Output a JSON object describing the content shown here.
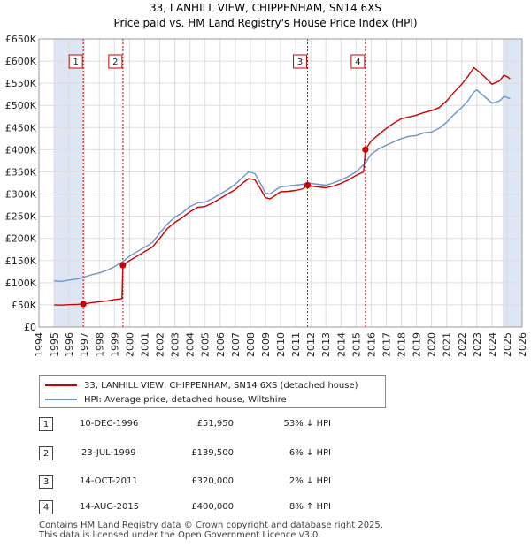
{
  "header": {
    "title": "33, LANHILL VIEW, CHIPPENHAM, SN14 6XS",
    "subtitle": "Price paid vs. HM Land Registry's House Price Index (HPI)"
  },
  "legend": {
    "property_label": "33, LANHILL VIEW, CHIPPENHAM, SN14 6XS (detached house)",
    "hpi_label": "HPI: Average price, detached house, Wiltshire"
  },
  "colors": {
    "property": "#cc0000",
    "hpi": "#6b96c8",
    "shade": "#dde6f2",
    "grid": "#dddddd",
    "marker_line": "#cc0000"
  },
  "sales": [
    {
      "num": "1",
      "date": "10-DEC-1996",
      "price": "£51,950",
      "hpi_delta": "53% ↓ HPI"
    },
    {
      "num": "2",
      "date": "23-JUL-1999",
      "price": "£139,500",
      "hpi_delta": "6% ↓ HPI"
    },
    {
      "num": "3",
      "date": "14-OCT-2011",
      "price": "£320,000",
      "hpi_delta": "2% ↓ HPI"
    },
    {
      "num": "4",
      "date": "14-AUG-2015",
      "price": "£400,000",
      "hpi_delta": "8% ↑ HPI"
    }
  ],
  "footer": {
    "line1": "Contains HM Land Registry data © Crown copyright and database right 2025.",
    "line2": "This data is licensed under the Open Government Licence v3.0."
  },
  "chart_data": {
    "type": "line",
    "title": "33, LANHILL VIEW, CHIPPENHAM, SN14 6XS",
    "subtitle": "Price paid vs. HM Land Registry's House Price Index (HPI)",
    "xlim": [
      1994,
      2026
    ],
    "ylim": [
      0,
      650000
    ],
    "x_ticks": [
      1994,
      1995,
      1996,
      1997,
      1998,
      1999,
      2000,
      2001,
      2002,
      2003,
      2004,
      2005,
      2006,
      2007,
      2008,
      2009,
      2010,
      2011,
      2012,
      2013,
      2014,
      2015,
      2016,
      2017,
      2018,
      2019,
      2020,
      2021,
      2022,
      2023,
      2024,
      2025,
      2026
    ],
    "x_tick_labels": [
      "1994",
      "1995",
      "1996",
      "1997",
      "1998",
      "1999",
      "2000",
      "2001",
      "2002",
      "2003",
      "2004",
      "2005",
      "2006",
      "2007",
      "2008",
      "2009",
      "2010",
      "2011",
      "2012",
      "2013",
      "2014",
      "2015",
      "2016",
      "2017",
      "2018",
      "2019",
      "2020",
      "2021",
      "2022",
      "2023",
      "2024",
      "2025",
      "2026"
    ],
    "y_ticks": [
      0,
      50000,
      100000,
      150000,
      200000,
      250000,
      300000,
      350000,
      400000,
      450000,
      500000,
      550000,
      600000,
      650000
    ],
    "y_tick_labels": [
      "£0",
      "£50K",
      "£100K",
      "£150K",
      "£200K",
      "£250K",
      "£300K",
      "£350K",
      "£400K",
      "£450K",
      "£500K",
      "£550K",
      "£600K",
      "£650K"
    ],
    "shaded_ranges": [
      [
        1995.0,
        1996.94
      ],
      [
        2024.7,
        2026
      ]
    ],
    "transactions": [
      {
        "label": "1",
        "x": 1996.94,
        "y": 51950
      },
      {
        "label": "2",
        "x": 1999.56,
        "y": 139500
      },
      {
        "label": "3",
        "x": 2011.79,
        "y": 320000
      },
      {
        "label": "4",
        "x": 2015.62,
        "y": 400000
      }
    ],
    "series": [
      {
        "name": "HPI: Average price, detached house, Wiltshire",
        "color": "#6b96c8",
        "x": [
          1995.0,
          1995.5,
          1996.0,
          1996.5,
          1996.94,
          1997.5,
          1998.0,
          1998.5,
          1999.0,
          1999.56,
          2000.0,
          2000.5,
          2001.0,
          2001.5,
          2002.0,
          2002.5,
          2003.0,
          2003.5,
          2004.0,
          2004.5,
          2005.0,
          2005.5,
          2006.0,
          2006.5,
          2007.0,
          2007.5,
          2007.9,
          2008.3,
          2008.7,
          2009.0,
          2009.3,
          2009.7,
          2010.0,
          2010.5,
          2011.0,
          2011.5,
          2011.79,
          2012.0,
          2012.5,
          2013.0,
          2013.5,
          2014.0,
          2014.5,
          2015.0,
          2015.62,
          2016.0,
          2016.5,
          2017.0,
          2017.5,
          2018.0,
          2018.5,
          2019.0,
          2019.5,
          2020.0,
          2020.5,
          2021.0,
          2021.5,
          2022.0,
          2022.4,
          2022.8,
          2023.0,
          2023.5,
          2024.0,
          2024.5,
          2024.8,
          2025.0,
          2025.2
        ],
        "values": [
          104000,
          103000,
          106000,
          108000,
          112000,
          118000,
          122000,
          128000,
          136000,
          148000,
          160000,
          170000,
          180000,
          190000,
          212000,
          232000,
          248000,
          258000,
          272000,
          280000,
          282000,
          290000,
          300000,
          310000,
          322000,
          338000,
          350000,
          346000,
          322000,
          302000,
          300000,
          310000,
          316000,
          318000,
          320000,
          322000,
          326000,
          324000,
          322000,
          320000,
          325000,
          332000,
          340000,
          350000,
          370000,
          390000,
          402000,
          410000,
          418000,
          425000,
          430000,
          432000,
          438000,
          440000,
          448000,
          462000,
          480000,
          495000,
          510000,
          530000,
          535000,
          520000,
          505000,
          510000,
          520000,
          518000,
          515000
        ]
      },
      {
        "name": "33, LANHILL VIEW, CHIPPENHAM, SN14 6XS (detached house)",
        "color": "#cc0000",
        "x": [
          1995.0,
          1995.5,
          1996.0,
          1996.5,
          1996.94,
          1997.5,
          1998.0,
          1998.5,
          1999.0,
          1999.5,
          1999.56,
          2000.0,
          2000.5,
          2001.0,
          2001.5,
          2002.0,
          2002.5,
          2003.0,
          2003.5,
          2004.0,
          2004.5,
          2005.0,
          2005.5,
          2006.0,
          2006.5,
          2007.0,
          2007.5,
          2007.9,
          2008.3,
          2008.7,
          2009.0,
          2009.3,
          2009.7,
          2010.0,
          2010.5,
          2011.0,
          2011.5,
          2011.79,
          2012.0,
          2012.5,
          2013.0,
          2013.5,
          2014.0,
          2014.5,
          2015.0,
          2015.5,
          2015.62,
          2016.0,
          2016.5,
          2017.0,
          2017.5,
          2018.0,
          2018.5,
          2019.0,
          2019.5,
          2020.0,
          2020.5,
          2021.0,
          2021.5,
          2022.0,
          2022.4,
          2022.8,
          2023.0,
          2023.5,
          2024.0,
          2024.5,
          2024.8,
          2025.0,
          2025.2
        ],
        "values": [
          50000,
          49500,
          50500,
          51000,
          51950,
          55000,
          57000,
          59000,
          62000,
          64000,
          139500,
          150000,
          160000,
          170000,
          180000,
          200000,
          222000,
          236000,
          247000,
          260000,
          270000,
          272000,
          280000,
          290000,
          300000,
          310000,
          325000,
          335000,
          332000,
          310000,
          292000,
          289000,
          298000,
          305000,
          306000,
          308000,
          312000,
          320000,
          318000,
          316000,
          314000,
          318000,
          324000,
          332000,
          342000,
          350000,
          400000,
          420000,
          434000,
          448000,
          460000,
          470000,
          474000,
          478000,
          484000,
          488000,
          495000,
          510000,
          530000,
          548000,
          565000,
          585000,
          580000,
          565000,
          548000,
          555000,
          568000,
          565000,
          560000
        ]
      }
    ]
  }
}
